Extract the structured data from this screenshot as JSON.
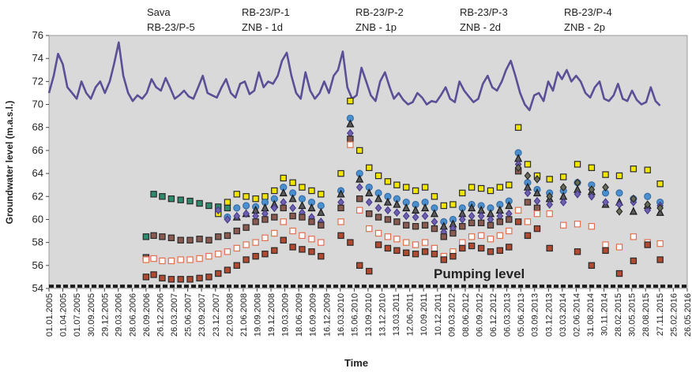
{
  "chart_data": {
    "type": "scatter",
    "y_label": "Groundwater level (m.a.s.l.)",
    "x_label": "Time",
    "ylim": [
      54,
      76
    ],
    "yticks": [
      54,
      56,
      58,
      60,
      62,
      64,
      66,
      68,
      70,
      72,
      74,
      76
    ],
    "xlim": [
      "2005-01-01",
      "2016-05-26"
    ],
    "xticks": [
      {
        "value": "2005-01-01",
        "label": "01.01.2005"
      },
      {
        "value": "2005-04-01",
        "label": "01.04.2005"
      },
      {
        "value": "2005-07-01",
        "label": "01.07.2005"
      },
      {
        "value": "2005-09-30",
        "label": "30.09.2005"
      },
      {
        "value": "2005-12-29",
        "label": "29.12.2005"
      },
      {
        "value": "2006-03-29",
        "label": "29.03.2006"
      },
      {
        "value": "2006-06-28",
        "label": "28.06.2006"
      },
      {
        "value": "2006-09-26",
        "label": "26.09.2006"
      },
      {
        "value": "2006-12-26",
        "label": "26.12.2006"
      },
      {
        "value": "2007-03-26",
        "label": "26.03.2007"
      },
      {
        "value": "2007-06-25",
        "label": "25.06.2007"
      },
      {
        "value": "2007-09-23",
        "label": "23.09.2007"
      },
      {
        "value": "2007-12-23",
        "label": "23.12.2007"
      },
      {
        "value": "2008-03-22",
        "label": "22.03.2008"
      },
      {
        "value": "2008-06-21",
        "label": "21.06.2008"
      },
      {
        "value": "2008-09-19",
        "label": "19.09.2008"
      },
      {
        "value": "2008-12-19",
        "label": "19.12.2008"
      },
      {
        "value": "2009-03-19",
        "label": "19.03.2009"
      },
      {
        "value": "2009-06-18",
        "label": "18.06.2009"
      },
      {
        "value": "2009-09-16",
        "label": "16.09.2009"
      },
      {
        "value": "2009-12-16",
        "label": "16.12.2009"
      },
      {
        "value": "2010-03-16",
        "label": "16.03.2010"
      },
      {
        "value": "2010-06-15",
        "label": "15.06.2010"
      },
      {
        "value": "2010-09-13",
        "label": "13.09.2010"
      },
      {
        "value": "2010-12-13",
        "label": "13.12.2010"
      },
      {
        "value": "2011-03-13",
        "label": "13.03.2011"
      },
      {
        "value": "2011-06-12",
        "label": "12.06.2011"
      },
      {
        "value": "2011-09-10",
        "label": "10.09.2011"
      },
      {
        "value": "2011-12-10",
        "label": "10.12.2011"
      },
      {
        "value": "2012-03-09",
        "label": "09.03.2012"
      },
      {
        "value": "2012-06-08",
        "label": "08.06.2012"
      },
      {
        "value": "2012-09-06",
        "label": "06.09.2012"
      },
      {
        "value": "2012-12-06",
        "label": "06.12.2012"
      },
      {
        "value": "2013-03-06",
        "label": "06.03.2013"
      },
      {
        "value": "2013-06-05",
        "label": "05.06.2013"
      },
      {
        "value": "2013-09-03",
        "label": "03.09.2013"
      },
      {
        "value": "2013-12-03",
        "label": "03.12.2013"
      },
      {
        "value": "2014-03-03",
        "label": "03.03.2014"
      },
      {
        "value": "2014-06-02",
        "label": "02.06.2014"
      },
      {
        "value": "2014-08-31",
        "label": "31.08.2014"
      },
      {
        "value": "2014-11-30",
        "label": "30.11.2014"
      },
      {
        "value": "2015-02-28",
        "label": "28.02.2015"
      },
      {
        "value": "2015-05-30",
        "label": "30.05.2015"
      },
      {
        "value": "2015-08-28",
        "label": "28.08.2015"
      },
      {
        "value": "2015-11-27",
        "label": "27.11.2015"
      },
      {
        "value": "2016-02-25",
        "label": "25.02.2016"
      },
      {
        "value": "2016-05-26",
        "label": "26.05.2016"
      }
    ],
    "background": "#d9d9d9",
    "reference_line": {
      "label": "Pumping level",
      "value": 54.2,
      "color": "#1a1a1a"
    },
    "x": [
      "2006-09-26",
      "2006-11-15",
      "2007-01-10",
      "2007-03-10",
      "2007-05-10",
      "2007-07-10",
      "2007-09-10",
      "2007-11-10",
      "2008-01-10",
      "2008-03-10",
      "2008-05-10",
      "2008-07-10",
      "2008-09-10",
      "2008-11-10",
      "2009-01-10",
      "2009-03-10",
      "2009-05-10",
      "2009-07-10",
      "2009-09-10",
      "2009-11-10",
      "2010-03-20",
      "2010-05-20",
      "2010-07-20",
      "2010-09-20",
      "2010-11-20",
      "2011-01-20",
      "2011-03-20",
      "2011-05-20",
      "2011-07-20",
      "2011-09-20",
      "2011-11-20",
      "2012-01-20",
      "2012-03-20",
      "2012-05-20",
      "2012-07-20",
      "2012-09-20",
      "2012-11-20",
      "2013-01-20",
      "2013-03-20",
      "2013-05-20",
      "2013-07-20",
      "2013-09-20",
      "2013-12-10",
      "2014-03-10",
      "2014-06-10",
      "2014-09-10",
      "2014-12-10",
      "2015-03-10",
      "2015-06-10",
      "2015-09-10",
      "2015-12-01"
    ],
    "series": [
      {
        "name": "Sava",
        "marker": "line",
        "color": "#5b4f96",
        "x": [
          "2005-01-01",
          "2005-02-01",
          "2005-03-01",
          "2005-04-01",
          "2005-05-01",
          "2005-06-01",
          "2005-07-01",
          "2005-08-01",
          "2005-09-01",
          "2005-10-01",
          "2005-11-01",
          "2005-12-01",
          "2006-01-01",
          "2006-02-01",
          "2006-03-01",
          "2006-04-01",
          "2006-05-01",
          "2006-06-01",
          "2006-07-01",
          "2006-08-01",
          "2006-09-01",
          "2006-10-01",
          "2006-11-01",
          "2006-12-01",
          "2007-01-01",
          "2007-02-01",
          "2007-03-01",
          "2007-04-01",
          "2007-05-01",
          "2007-06-01",
          "2007-07-01",
          "2007-08-01",
          "2007-09-01",
          "2007-10-01",
          "2007-11-01",
          "2007-12-01",
          "2008-01-01",
          "2008-02-01",
          "2008-03-01",
          "2008-04-01",
          "2008-05-01",
          "2008-06-01",
          "2008-07-01",
          "2008-08-01",
          "2008-09-01",
          "2008-10-01",
          "2008-11-01",
          "2008-12-01",
          "2009-01-01",
          "2009-02-01",
          "2009-03-01",
          "2009-04-01",
          "2009-05-01",
          "2009-06-01",
          "2009-07-01",
          "2009-08-01",
          "2009-09-01",
          "2009-10-01",
          "2009-11-01",
          "2009-12-01",
          "2010-01-01",
          "2010-02-01",
          "2010-03-01",
          "2010-04-01",
          "2010-05-01",
          "2010-06-01",
          "2010-07-01",
          "2010-08-01",
          "2010-09-01",
          "2010-10-01",
          "2010-11-01",
          "2010-12-01",
          "2011-01-01",
          "2011-02-01",
          "2011-03-01",
          "2011-04-01",
          "2011-05-01",
          "2011-06-01",
          "2011-07-01",
          "2011-08-01",
          "2011-09-01",
          "2011-10-01",
          "2011-11-01",
          "2011-12-01",
          "2012-01-01",
          "2012-02-01",
          "2012-03-01",
          "2012-04-01",
          "2012-05-01",
          "2012-06-01",
          "2012-07-01",
          "2012-08-01",
          "2012-09-01",
          "2012-10-01",
          "2012-11-01",
          "2012-12-01",
          "2013-01-01",
          "2013-02-01",
          "2013-03-01",
          "2013-04-01",
          "2013-05-01",
          "2013-06-01",
          "2013-07-01",
          "2013-08-01",
          "2013-09-01",
          "2013-10-01",
          "2013-11-01",
          "2013-12-01",
          "2014-01-01",
          "2014-02-01",
          "2014-03-01",
          "2014-04-01",
          "2014-05-01",
          "2014-06-01",
          "2014-07-01",
          "2014-08-01",
          "2014-09-01",
          "2014-10-01",
          "2014-11-01",
          "2014-12-01",
          "2015-01-01",
          "2015-02-01",
          "2015-03-01",
          "2015-04-01",
          "2015-05-01",
          "2015-06-01",
          "2015-07-01",
          "2015-08-01",
          "2015-09-01",
          "2015-10-01",
          "2015-11-01",
          "2015-12-01"
        ],
        "values": [
          71.0,
          72.5,
          74.4,
          73.5,
          71.5,
          71.0,
          70.5,
          72.0,
          71.0,
          70.5,
          71.5,
          72.0,
          71.0,
          72.0,
          73.5,
          75.4,
          72.5,
          71.0,
          70.3,
          70.8,
          70.5,
          71.0,
          72.2,
          71.5,
          71.2,
          72.3,
          71.5,
          70.5,
          70.8,
          71.2,
          70.7,
          70.5,
          71.5,
          72.5,
          71.0,
          70.8,
          70.6,
          71.5,
          72.2,
          71.0,
          70.6,
          71.8,
          72.0,
          70.9,
          71.2,
          72.8,
          71.5,
          72.0,
          71.8,
          72.5,
          73.8,
          74.5,
          72.5,
          71.0,
          70.5,
          72.8,
          71.2,
          70.5,
          71.0,
          72.0,
          71.0,
          72.5,
          73.0,
          74.6,
          71.5,
          70.5,
          70.8,
          73.2,
          72.0,
          70.8,
          70.3,
          72.0,
          72.8,
          71.5,
          70.5,
          71.0,
          70.4,
          70.0,
          70.2,
          71.0,
          70.6,
          70.0,
          70.3,
          70.2,
          70.8,
          71.5,
          70.5,
          70.2,
          72.0,
          71.2,
          70.7,
          70.2,
          70.5,
          71.8,
          72.5,
          71.5,
          71.2,
          72.0,
          73.0,
          73.8,
          72.5,
          71.0,
          70.0,
          69.5,
          70.8,
          71.0,
          70.3,
          72.0,
          71.2,
          72.8,
          72.2,
          73.0,
          72.0,
          72.5,
          72.0,
          71.0,
          70.6,
          71.5,
          72.0,
          70.5,
          70.3,
          70.8,
          71.8,
          70.5,
          70.3,
          71.2,
          70.4,
          70.0,
          70.2,
          71.5,
          70.3,
          69.9
        ]
      },
      {
        "name": "RB-23/P-5",
        "marker": "square",
        "color": "#2a2a2a",
        "fill": "#2e8b6e",
        "values": [
          58.5,
          62.2,
          62.0,
          61.8,
          61.7,
          61.6,
          61.4,
          61.2,
          61.1,
          61.0,
          null,
          null,
          null,
          null,
          null,
          null,
          null,
          null,
          null,
          null,
          null,
          null,
          null,
          null,
          null,
          null,
          null,
          null,
          null,
          null,
          null,
          null,
          null,
          null,
          null,
          null,
          null,
          null,
          null,
          null,
          null,
          null,
          null,
          null,
          null,
          null,
          null,
          null,
          null,
          null,
          null
        ]
      },
      {
        "name": "RB-23/P-1",
        "marker": "square",
        "color": "#2a2a2a",
        "fill": "#f2e600",
        "values": [
          null,
          null,
          null,
          null,
          null,
          null,
          null,
          null,
          60.5,
          61.5,
          62.2,
          62.0,
          61.8,
          62.0,
          62.5,
          63.6,
          63.2,
          62.8,
          62.5,
          62.2,
          64.0,
          70.3,
          66.0,
          64.5,
          63.8,
          63.3,
          63.0,
          62.8,
          62.5,
          62.8,
          62.0,
          61.2,
          61.3,
          62.3,
          62.8,
          62.7,
          62.5,
          62.8,
          63.0,
          68.0,
          64.8,
          63.8,
          63.5,
          63.7,
          64.8,
          64.5,
          63.9,
          63.8,
          64.4,
          64.3,
          63.1
        ]
      },
      {
        "name": "ZNB - 1d",
        "marker": "circle",
        "color": "#3a6ea5",
        "fill": "#4a90d0",
        "values": [
          null,
          null,
          null,
          null,
          null,
          null,
          null,
          null,
          null,
          60.2,
          61.0,
          61.2,
          61.1,
          61.5,
          61.8,
          62.8,
          62.3,
          61.8,
          61.5,
          61.2,
          62.5,
          68.8,
          64.0,
          62.8,
          62.3,
          62.0,
          61.8,
          61.5,
          61.3,
          61.5,
          61.0,
          59.8,
          60.0,
          61.0,
          61.3,
          61.2,
          61.0,
          61.3,
          61.6,
          65.8,
          63.2,
          62.6,
          62.3,
          62.5,
          63.2,
          63.0,
          62.3,
          62.3,
          61.8,
          62.0,
          61.5
        ]
      },
      {
        "name": "RB-23/P-2",
        "marker": "triangle",
        "color": "#1a1a1a",
        "fill": "#5a5a5a",
        "values": [
          null,
          null,
          null,
          null,
          null,
          null,
          null,
          null,
          null,
          null,
          60.2,
          60.5,
          60.8,
          61.0,
          61.3,
          62.3,
          61.8,
          61.2,
          61.0,
          60.6,
          62.2,
          68.3,
          63.5,
          62.3,
          61.8,
          61.5,
          61.3,
          61.0,
          60.8,
          61.0,
          60.5,
          59.4,
          59.6,
          60.5,
          61.0,
          60.8,
          60.5,
          60.8,
          61.2,
          65.3,
          62.8,
          62.3,
          61.8,
          62.0,
          62.6,
          62.4,
          61.3,
          61.5,
          60.7,
          61.2,
          60.6
        ]
      },
      {
        "name": "ZNB - 1p",
        "marker": "diamond",
        "color": "#4a3e8a",
        "fill": "#7060b0",
        "values": [
          null,
          null,
          null,
          null,
          null,
          null,
          null,
          null,
          60.8,
          60.0,
          60.3,
          60.5,
          60.3,
          60.5,
          61.0,
          61.5,
          61.0,
          60.6,
          60.2,
          59.8,
          61.5,
          67.5,
          62.8,
          61.5,
          61.0,
          60.8,
          60.6,
          60.3,
          60.2,
          60.3,
          59.8,
          58.9,
          59.2,
          60.0,
          60.3,
          60.3,
          60.0,
          60.3,
          60.5,
          64.8,
          62.3,
          61.6,
          61.3,
          61.5,
          62.2,
          62.0,
          61.5,
          61.3,
          61.5,
          60.8,
          61.2
        ]
      },
      {
        "name": "RB-23/P-3",
        "marker": "square",
        "color": "#2a2a2a",
        "fill": "#8a5a50",
        "values": [
          56.7,
          58.6,
          58.5,
          58.4,
          58.2,
          58.2,
          58.3,
          58.2,
          58.5,
          58.6,
          59.0,
          59.3,
          59.8,
          60.0,
          60.2,
          61.0,
          60.3,
          60.2,
          59.8,
          59.5,
          61.0,
          67.0,
          61.8,
          60.5,
          60.2,
          60.0,
          59.8,
          59.5,
          59.4,
          59.5,
          59.2,
          58.5,
          58.8,
          59.4,
          59.7,
          59.7,
          59.5,
          59.8,
          60.0,
          64.2,
          61.5,
          61.0,
          null,
          null,
          null,
          null,
          null,
          null,
          null,
          null,
          null
        ]
      },
      {
        "name": "ZNB - 2d",
        "marker": "square",
        "color": "#e07050",
        "fill": "#ffffff",
        "values": [
          56.5,
          56.6,
          56.4,
          56.4,
          56.5,
          56.5,
          56.6,
          56.8,
          57.0,
          57.2,
          57.5,
          57.8,
          58.0,
          58.4,
          58.8,
          59.8,
          59.0,
          58.6,
          58.3,
          58.0,
          59.8,
          66.5,
          60.8,
          59.2,
          58.8,
          58.5,
          58.3,
          58.0,
          57.8,
          58.0,
          57.5,
          56.8,
          57.2,
          58.0,
          58.5,
          58.6,
          58.3,
          58.6,
          59.0,
          60.8,
          59.8,
          60.5,
          60.5,
          59.5,
          59.6,
          59.4,
          57.8,
          57.6,
          58.5,
          58.0,
          57.9
        ]
      },
      {
        "name": "RB-23/P-4",
        "marker": "square",
        "color": "#2a2a2a",
        "fill": "#b04a30",
        "values": [
          55.0,
          55.2,
          54.9,
          54.8,
          54.8,
          54.8,
          54.9,
          55.0,
          55.3,
          55.6,
          56.0,
          56.5,
          56.8,
          57.0,
          57.3,
          58.2,
          57.6,
          57.4,
          57.2,
          56.8,
          58.6,
          58.0,
          56.0,
          55.5,
          57.8,
          57.5,
          57.3,
          57.1,
          57.0,
          57.2,
          57.0,
          56.5,
          56.8,
          57.5,
          57.7,
          57.5,
          57.2,
          57.3,
          57.6,
          59.8,
          58.6,
          59.2,
          57.5,
          null,
          57.2,
          56.0,
          57.3,
          55.3,
          56.4,
          57.8,
          56.5
        ]
      },
      {
        "name": "ZNB - 2p",
        "marker": "diamond",
        "color": "#2a2a2a",
        "fill": "#6b6b5a",
        "values": [
          null,
          null,
          null,
          null,
          null,
          null,
          null,
          null,
          null,
          null,
          null,
          null,
          null,
          null,
          null,
          null,
          null,
          null,
          null,
          null,
          null,
          null,
          null,
          null,
          null,
          null,
          null,
          null,
          null,
          null,
          null,
          null,
          null,
          null,
          null,
          null,
          null,
          null,
          null,
          64.5,
          63.8,
          63.5,
          62.0,
          62.8,
          63.2,
          62.6,
          62.8,
          60.7,
          61.8,
          61.3,
          61.0
        ]
      }
    ]
  }
}
